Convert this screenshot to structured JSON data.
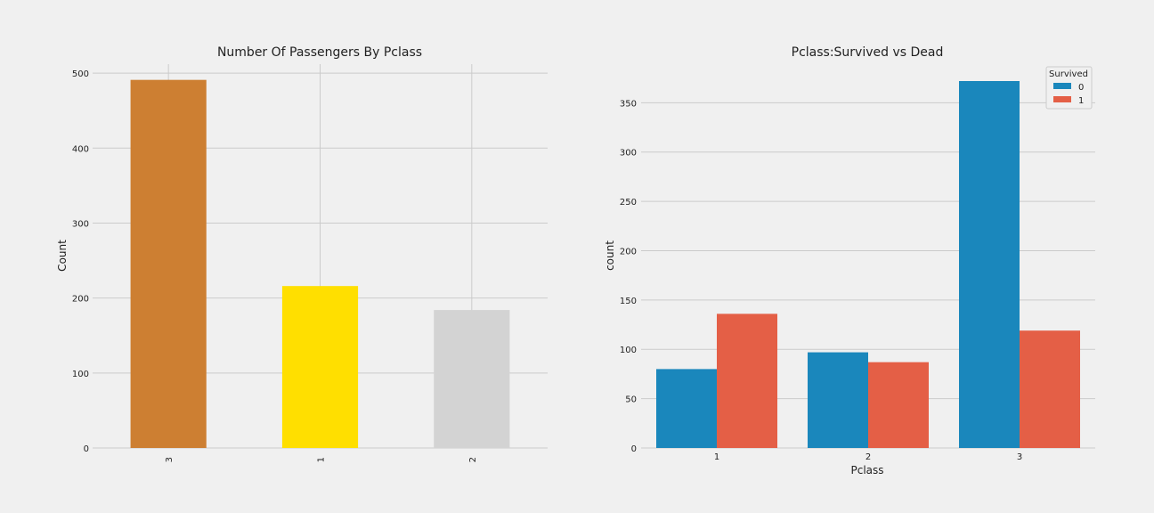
{
  "chart_data": [
    {
      "type": "bar",
      "title": "Number Of Passengers By Pclass",
      "xlabel": "",
      "ylabel": "Count",
      "categories": [
        "3",
        "1",
        "2"
      ],
      "values": [
        491,
        216,
        184
      ],
      "colors": [
        "#CD7F32",
        "#FFDF00",
        "#D3D3D3"
      ],
      "ylim": [
        0,
        512
      ],
      "yticks": [
        0,
        100,
        200,
        300,
        400,
        500
      ],
      "xtick_rotation": "vertical",
      "grid": true
    },
    {
      "type": "bar",
      "title": "Pclass:Survived vs Dead",
      "xlabel": "Pclass",
      "ylabel": "count",
      "categories": [
        "1",
        "2",
        "3"
      ],
      "series": [
        {
          "name": "0",
          "values": [
            80,
            97,
            372
          ],
          "color": "#1a87bc"
        },
        {
          "name": "1",
          "values": [
            136,
            87,
            119
          ],
          "color": "#e45f46"
        }
      ],
      "ylim": [
        0,
        372
      ],
      "yticks": [
        0,
        50,
        100,
        150,
        200,
        250,
        300,
        350
      ],
      "legend": {
        "title": "Survived",
        "placement": "top-right"
      },
      "grid": true
    }
  ]
}
